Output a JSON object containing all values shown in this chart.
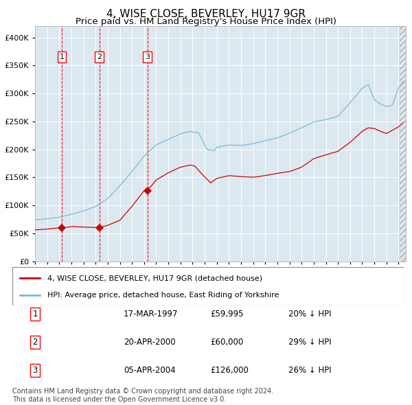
{
  "title": "4, WISE CLOSE, BEVERLEY, HU17 9GR",
  "subtitle": "Price paid vs. HM Land Registry's House Price Index (HPI)",
  "plot_bg_color": "#dce8f0",
  "ylim": [
    0,
    420000
  ],
  "yticks": [
    0,
    50000,
    100000,
    150000,
    200000,
    250000,
    300000,
    350000,
    400000
  ],
  "xlim_start": 1995.0,
  "xlim_end": 2025.6,
  "sale_dates": [
    1997.21,
    2000.31,
    2004.27
  ],
  "sale_prices": [
    59995,
    60000,
    126000
  ],
  "sale_labels": [
    "1",
    "2",
    "3"
  ],
  "vline_dates": [
    1997.21,
    2000.31,
    2004.27
  ],
  "legend_line1": "4, WISE CLOSE, BEVERLEY, HU17 9GR (detached house)",
  "legend_line2": "HPI: Average price, detached house, East Riding of Yorkshire",
  "table_rows": [
    [
      "1",
      "17-MAR-1997",
      "£59,995",
      "20% ↓ HPI"
    ],
    [
      "2",
      "20-APR-2000",
      "£60,000",
      "29% ↓ HPI"
    ],
    [
      "3",
      "05-APR-2004",
      "£126,000",
      "26% ↓ HPI"
    ]
  ],
  "footer": "Contains HM Land Registry data © Crown copyright and database right 2024.\nThis data is licensed under the Open Government Licence v3.0.",
  "hpi_color": "#7ab8d9",
  "price_color": "#cc0000",
  "grid_color": "#ffffff",
  "title_fontsize": 11,
  "subtitle_fontsize": 9.5,
  "tick_fontsize": 8,
  "legend_fontsize": 8,
  "table_fontsize": 8.5,
  "footer_fontsize": 7
}
